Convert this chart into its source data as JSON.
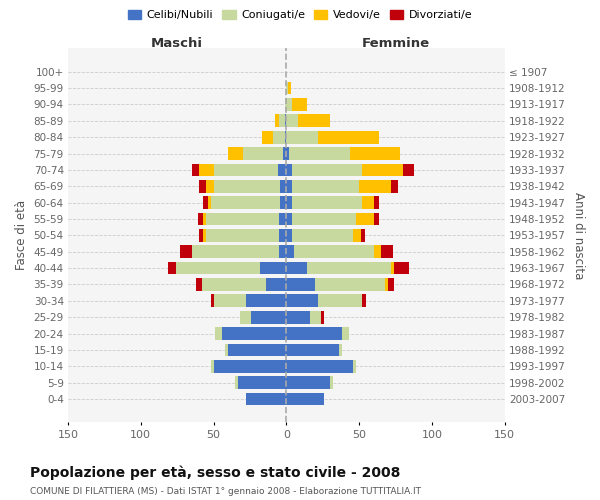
{
  "age_groups": [
    "0-4",
    "5-9",
    "10-14",
    "15-19",
    "20-24",
    "25-29",
    "30-34",
    "35-39",
    "40-44",
    "45-49",
    "50-54",
    "55-59",
    "60-64",
    "65-69",
    "70-74",
    "75-79",
    "80-84",
    "85-89",
    "90-94",
    "95-99",
    "100+"
  ],
  "birth_years": [
    "2003-2007",
    "1998-2002",
    "1993-1997",
    "1988-1992",
    "1983-1987",
    "1978-1982",
    "1973-1977",
    "1968-1972",
    "1963-1967",
    "1958-1962",
    "1953-1957",
    "1948-1952",
    "1943-1947",
    "1938-1942",
    "1933-1937",
    "1928-1932",
    "1923-1927",
    "1918-1922",
    "1913-1917",
    "1908-1912",
    "≤ 1907"
  ],
  "male_celibi": [
    28,
    33,
    50,
    40,
    44,
    24,
    28,
    14,
    18,
    5,
    5,
    5,
    4,
    4,
    6,
    2,
    1,
    1,
    0,
    0,
    0
  ],
  "male_coniugati": [
    0,
    2,
    2,
    2,
    5,
    8,
    22,
    44,
    58,
    60,
    50,
    50,
    48,
    46,
    44,
    28,
    8,
    4,
    1,
    0,
    0
  ],
  "male_vedovi": [
    0,
    0,
    0,
    0,
    0,
    0,
    0,
    0,
    0,
    0,
    2,
    2,
    2,
    5,
    10,
    10,
    8,
    3,
    0,
    0,
    0
  ],
  "male_divorziati": [
    0,
    0,
    0,
    0,
    0,
    0,
    2,
    4,
    5,
    8,
    3,
    4,
    3,
    5,
    5,
    0,
    0,
    0,
    0,
    0,
    0
  ],
  "female_nubili": [
    26,
    30,
    46,
    36,
    38,
    16,
    22,
    20,
    14,
    5,
    4,
    4,
    4,
    4,
    4,
    2,
    0,
    0,
    0,
    0,
    0
  ],
  "female_coniugate": [
    0,
    2,
    2,
    2,
    5,
    8,
    30,
    48,
    58,
    55,
    42,
    44,
    48,
    46,
    48,
    42,
    22,
    8,
    4,
    1,
    0
  ],
  "female_vedove": [
    0,
    0,
    0,
    0,
    0,
    0,
    0,
    2,
    2,
    5,
    5,
    12,
    8,
    22,
    28,
    34,
    42,
    22,
    10,
    2,
    0
  ],
  "female_divorziate": [
    0,
    0,
    0,
    0,
    0,
    2,
    3,
    4,
    10,
    8,
    3,
    4,
    4,
    5,
    8,
    0,
    0,
    0,
    0,
    0,
    0
  ],
  "colors": {
    "celibi": "#4472c4",
    "coniugati": "#c8d9a0",
    "vedovi": "#ffc000",
    "divorziati": "#c0000b"
  },
  "xlim": 150,
  "title": "Popolazione per età, sesso e stato civile - 2008",
  "subtitle": "COMUNE DI FILATTIERA (MS) - Dati ISTAT 1° gennaio 2008 - Elaborazione TUTTITALIA.IT",
  "ylabel_left": "Fasce di età",
  "ylabel_right": "Anni di nascita",
  "xlabel_left": "Maschi",
  "xlabel_right": "Femmine",
  "legend_labels": [
    "Celibi/Nubili",
    "Coniugati/e",
    "Vedovi/e",
    "Divorziati/e"
  ]
}
